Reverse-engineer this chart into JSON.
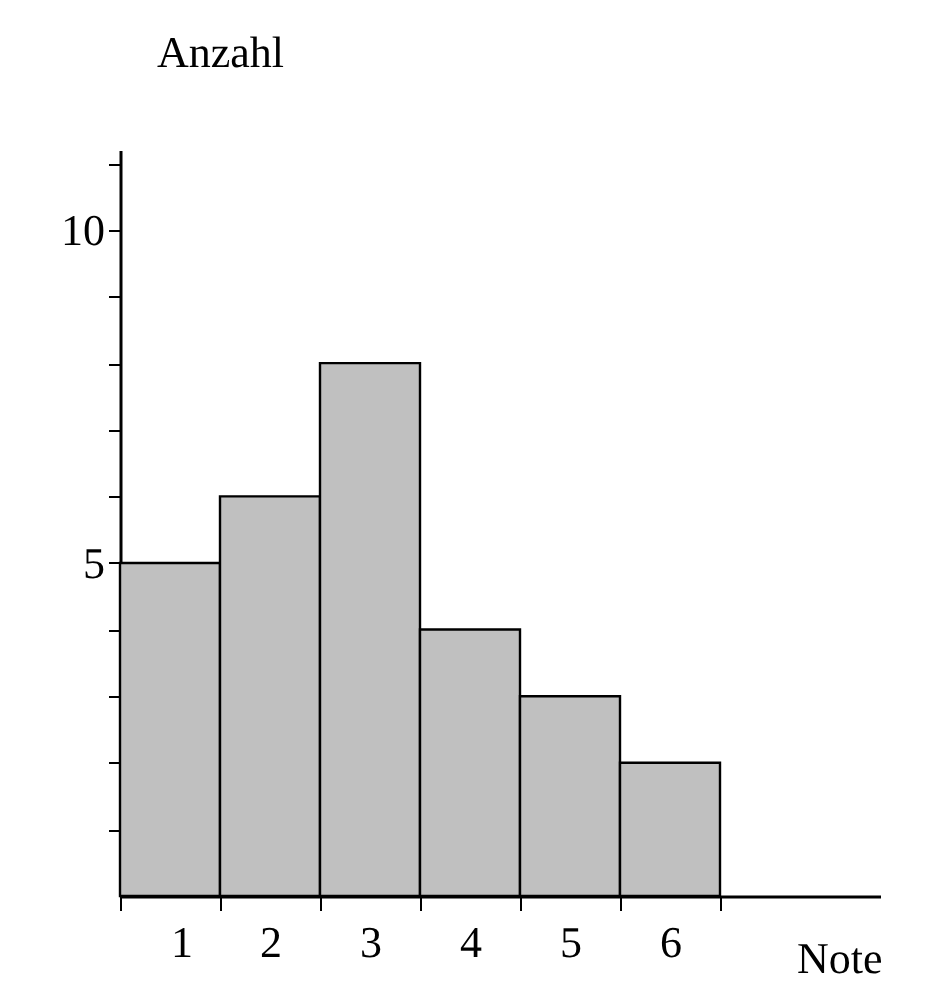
{
  "chart_data": {
    "type": "bar",
    "xlabel": "Note",
    "ylabel": "Anzahl",
    "categories": [
      "1",
      "2",
      "3",
      "4",
      "5",
      "6"
    ],
    "values": [
      5,
      6,
      8,
      4,
      3,
      2
    ],
    "color": "#c0c0c0",
    "ylim": [
      0,
      11.2
    ],
    "yticks": [
      {
        "value": 1,
        "label": null
      },
      {
        "value": 2,
        "label": null
      },
      {
        "value": 3,
        "label": null
      },
      {
        "value": 4,
        "label": null
      },
      5,
      {
        "value": 6,
        "label": null
      },
      {
        "value": 7,
        "label": null
      },
      {
        "value": 8,
        "label": null
      },
      {
        "value": 9,
        "label": null
      },
      10,
      {
        "value": 11,
        "label": null
      }
    ],
    "grid": false
  }
}
